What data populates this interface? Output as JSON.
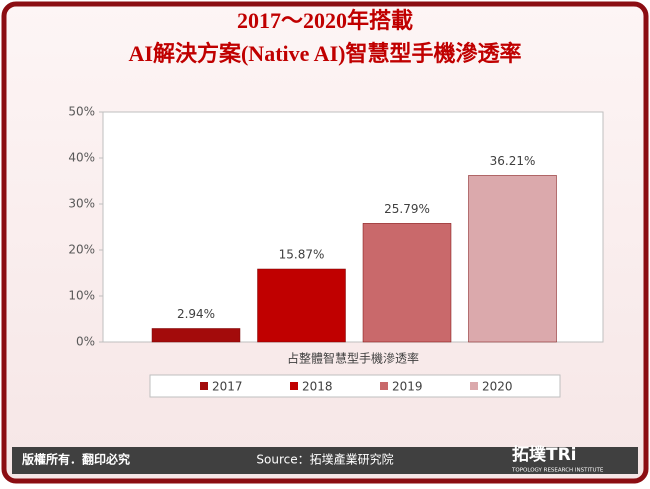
{
  "chart_data": {
    "type": "bar",
    "title": "2017～2020年搭載",
    "subtitle": "AI解決方案(Native AI)智慧型手機滲透率",
    "categories": [
      "占整體智慧型手機滲透率"
    ],
    "series": [
      {
        "name": "2017",
        "color": "#a30b0b",
        "values": [
          2.94
        ],
        "value_labels": [
          "2.94%"
        ]
      },
      {
        "name": "2018",
        "color": "#c00000",
        "values": [
          15.87
        ],
        "value_labels": [
          "15.87%"
        ]
      },
      {
        "name": "2019",
        "color": "#c9696b",
        "values": [
          25.79
        ],
        "value_labels": [
          "25.79%"
        ]
      },
      {
        "name": "2020",
        "color": "#dba9ac",
        "values": [
          36.21
        ],
        "value_labels": [
          "36.21%"
        ]
      }
    ],
    "ylim": [
      0,
      50
    ],
    "yticks": [
      {
        "value": 0,
        "label": "0%"
      },
      {
        "value": 10,
        "label": "10%"
      },
      {
        "value": 20,
        "label": "20%"
      },
      {
        "value": 30,
        "label": "30%"
      },
      {
        "value": 40,
        "label": "40%"
      },
      {
        "value": 50,
        "label": "50%"
      }
    ],
    "grid": false,
    "legend": "bottom"
  },
  "footer": {
    "copyright": "版權所有．翻印必究",
    "source": "Source：拓墣產業研究院",
    "logo": "拓墣TRi",
    "logo_sub": "TOPOLOGY RESEARCH INSTITUTE"
  }
}
